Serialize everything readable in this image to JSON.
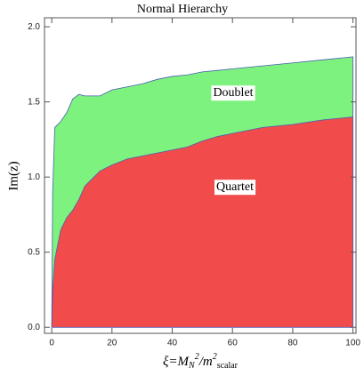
{
  "chart_data": {
    "type": "area",
    "title": "Normal Hierarchy",
    "x_label_parts": [
      "ξ=M",
      "N",
      "2",
      "/m",
      "2",
      "scalar"
    ],
    "y_label": "Im(z)",
    "x": [
      0,
      0.3,
      1,
      3,
      5,
      7,
      9,
      11,
      16,
      20,
      25,
      30,
      35,
      40,
      45,
      50,
      55,
      60,
      65,
      70,
      80,
      90,
      100
    ],
    "series": [
      {
        "name": "Doublet",
        "color": "#7ef27e",
        "values": [
          0,
          0.9,
          1.33,
          1.37,
          1.43,
          1.52,
          1.55,
          1.54,
          1.54,
          1.58,
          1.6,
          1.62,
          1.65,
          1.67,
          1.68,
          1.7,
          1.71,
          1.72,
          1.73,
          1.74,
          1.76,
          1.78,
          1.8
        ]
      },
      {
        "name": "Quartet",
        "color": "#f24b4b",
        "values": [
          0,
          0.25,
          0.45,
          0.65,
          0.73,
          0.78,
          0.85,
          0.94,
          1.04,
          1.08,
          1.12,
          1.14,
          1.16,
          1.18,
          1.2,
          1.24,
          1.27,
          1.29,
          1.31,
          1.33,
          1.35,
          1.38,
          1.4
        ]
      }
    ],
    "xlim": [
      -2.4,
      101
    ],
    "ylim": [
      -0.04,
      2.06
    ],
    "xticks": [
      0,
      20,
      40,
      60,
      80,
      100
    ],
    "yticks": [
      {
        "value": 0,
        "label": "0.0"
      },
      0.5,
      {
        "value": 1,
        "label": "1.0"
      },
      1.5,
      {
        "value": 2,
        "label": "2.0"
      }
    ]
  }
}
